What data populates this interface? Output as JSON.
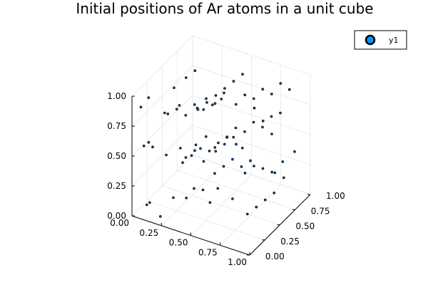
{
  "chart_data": {
    "type": "scatter3d",
    "title": "Initial positions of Ar atoms in a unit cube",
    "legend": {
      "entries": [
        "y1"
      ],
      "position": "top-right"
    },
    "x_ticks": [
      "0.00",
      "0.25",
      "0.50",
      "0.75",
      "1.00"
    ],
    "y_ticks": [
      "0.00",
      "0.25",
      "0.50",
      "0.75",
      "1.00"
    ],
    "z_ticks": [
      "0.00",
      "0.25",
      "0.50",
      "0.75",
      "1.00"
    ],
    "xlim": [
      0,
      1
    ],
    "ylim": [
      0,
      1
    ],
    "zlim": [
      0,
      1
    ],
    "grid": true,
    "series": [
      {
        "name": "y1",
        "color": "#009af9",
        "points": [
          [
            0.1,
            0.05,
            0.1
          ],
          [
            0.12,
            0.06,
            0.12
          ],
          [
            0.2,
            0.08,
            0.02
          ],
          [
            0.3,
            0.1,
            0.2
          ],
          [
            0.4,
            0.12,
            0.22
          ],
          [
            0.45,
            0.15,
            0.3
          ],
          [
            0.5,
            0.2,
            0.28
          ],
          [
            0.55,
            0.22,
            0.18
          ],
          [
            0.6,
            0.25,
            0.3
          ],
          [
            0.7,
            0.3,
            0.22
          ],
          [
            0.8,
            0.35,
            0.1
          ],
          [
            0.85,
            0.4,
            0.15
          ],
          [
            0.9,
            0.45,
            0.2
          ],
          [
            0.95,
            0.5,
            0.25
          ],
          [
            0.88,
            0.6,
            0.35
          ],
          [
            0.92,
            0.7,
            0.4
          ],
          [
            0.97,
            0.8,
            0.45
          ],
          [
            0.75,
            0.85,
            0.5
          ],
          [
            0.65,
            0.9,
            0.55
          ],
          [
            0.55,
            0.95,
            0.6
          ],
          [
            0.05,
            0.1,
            0.55
          ],
          [
            0.08,
            0.12,
            0.58
          ],
          [
            0.15,
            0.05,
            0.6
          ],
          [
            0.25,
            0.08,
            0.55
          ],
          [
            0.35,
            0.12,
            0.62
          ],
          [
            0.45,
            0.18,
            0.65
          ],
          [
            0.5,
            0.25,
            0.7
          ],
          [
            0.55,
            0.3,
            0.6
          ],
          [
            0.6,
            0.4,
            0.65
          ],
          [
            0.65,
            0.45,
            0.72
          ],
          [
            0.7,
            0.5,
            0.68
          ],
          [
            0.75,
            0.55,
            0.75
          ],
          [
            0.8,
            0.6,
            0.7
          ],
          [
            0.85,
            0.65,
            0.78
          ],
          [
            0.9,
            0.7,
            0.8
          ],
          [
            0.05,
            0.05,
            0.9
          ],
          [
            0.1,
            0.08,
            0.98
          ],
          [
            0.2,
            0.15,
            0.85
          ],
          [
            0.3,
            0.2,
            0.92
          ],
          [
            0.4,
            0.3,
            0.88
          ],
          [
            0.45,
            0.35,
            0.95
          ],
          [
            0.5,
            0.4,
            0.9
          ],
          [
            0.55,
            0.45,
            0.98
          ],
          [
            0.6,
            0.55,
            0.85
          ],
          [
            0.65,
            0.6,
            0.92
          ],
          [
            0.7,
            0.65,
            0.88
          ],
          [
            0.75,
            0.7,
            0.95
          ],
          [
            0.8,
            0.75,
            0.9
          ],
          [
            0.85,
            0.8,
            0.98
          ],
          [
            0.9,
            0.85,
            0.92
          ],
          [
            0.25,
            0.35,
            0.35
          ],
          [
            0.3,
            0.4,
            0.4
          ],
          [
            0.35,
            0.45,
            0.45
          ],
          [
            0.4,
            0.5,
            0.42
          ],
          [
            0.45,
            0.55,
            0.48
          ],
          [
            0.5,
            0.6,
            0.52
          ],
          [
            0.55,
            0.65,
            0.45
          ],
          [
            0.2,
            0.5,
            0.3
          ],
          [
            0.25,
            0.55,
            0.35
          ],
          [
            0.3,
            0.6,
            0.25
          ],
          [
            0.35,
            0.7,
            0.3
          ],
          [
            0.4,
            0.75,
            0.35
          ],
          [
            0.45,
            0.8,
            0.4
          ],
          [
            0.5,
            0.85,
            0.3
          ],
          [
            0.2,
            0.7,
            0.6
          ],
          [
            0.25,
            0.75,
            0.65
          ],
          [
            0.3,
            0.8,
            0.7
          ],
          [
            0.35,
            0.85,
            0.75
          ],
          [
            0.4,
            0.9,
            0.8
          ],
          [
            0.45,
            0.95,
            0.85
          ],
          [
            0.15,
            0.3,
            0.75
          ],
          [
            0.2,
            0.35,
            0.78
          ],
          [
            0.25,
            0.4,
            0.72
          ],
          [
            0.3,
            0.45,
            0.8
          ],
          [
            0.35,
            0.5,
            0.75
          ],
          [
            0.4,
            0.55,
            0.78
          ],
          [
            0.45,
            0.6,
            0.82
          ],
          [
            0.1,
            0.5,
            0.85
          ],
          [
            0.15,
            0.6,
            0.9
          ],
          [
            0.2,
            0.65,
            0.95
          ],
          [
            0.6,
            0.2,
            0.45
          ],
          [
            0.65,
            0.25,
            0.5
          ],
          [
            0.7,
            0.3,
            0.55
          ],
          [
            0.75,
            0.35,
            0.48
          ],
          [
            0.8,
            0.4,
            0.52
          ],
          [
            0.6,
            0.7,
            0.2
          ],
          [
            0.65,
            0.75,
            0.25
          ],
          [
            0.7,
            0.8,
            0.22
          ],
          [
            0.75,
            0.9,
            0.15
          ],
          [
            0.8,
            0.95,
            0.1
          ]
        ]
      }
    ]
  }
}
